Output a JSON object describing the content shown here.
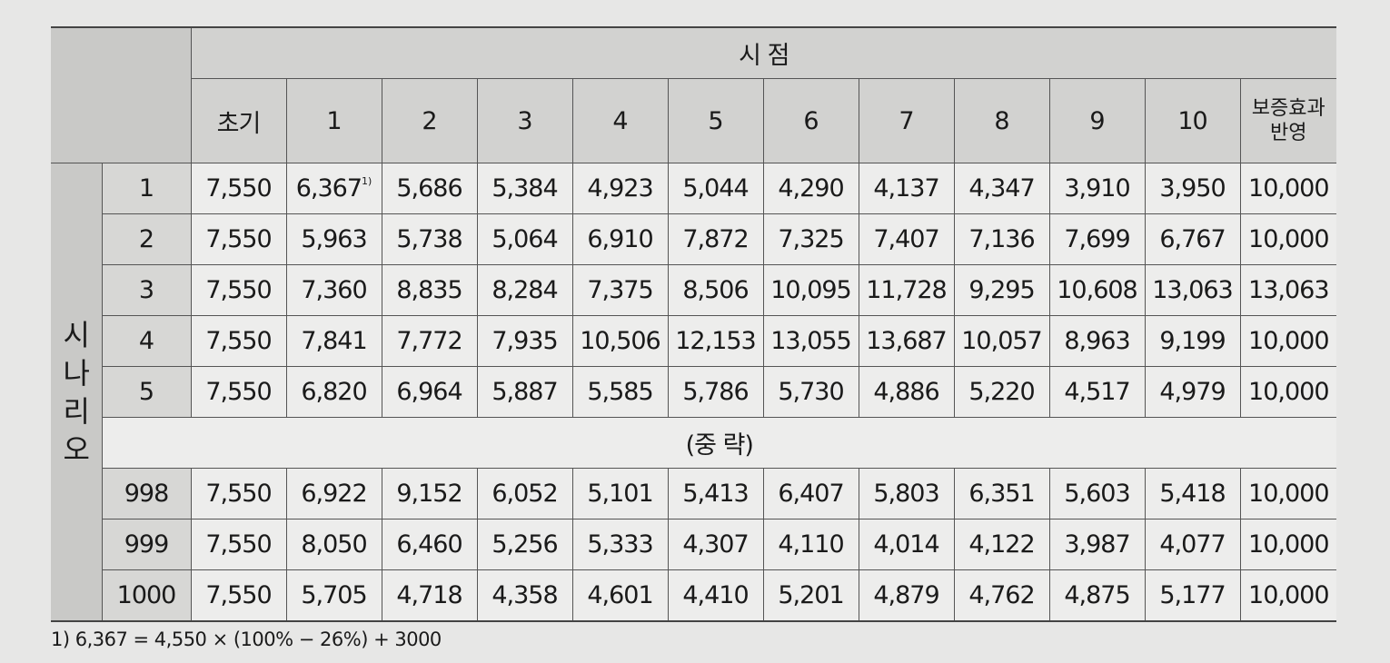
{
  "table": {
    "group_header": "시 점",
    "columns": [
      "초기",
      "1",
      "2",
      "3",
      "4",
      "5",
      "6",
      "7",
      "8",
      "9",
      "10",
      "보증효과 반영"
    ],
    "last_column": [
      "보증효과",
      "반영"
    ],
    "scenario_label": [
      "시",
      "나",
      "리",
      "오"
    ],
    "footnote_marker": "1)",
    "rows_top": [
      {
        "id": "1",
        "values": [
          "7,550",
          "6,367",
          "5,686",
          "5,384",
          "4,923",
          "5,044",
          "4,290",
          "4,137",
          "4,347",
          "3,910",
          "3,950",
          "10,000"
        ]
      },
      {
        "id": "2",
        "values": [
          "7,550",
          "5,963",
          "5,738",
          "5,064",
          "6,910",
          "7,872",
          "7,325",
          "7,407",
          "7,136",
          "7,699",
          "6,767",
          "10,000"
        ]
      },
      {
        "id": "3",
        "values": [
          "7,550",
          "7,360",
          "8,835",
          "8,284",
          "7,375",
          "8,506",
          "10,095",
          "11,728",
          "9,295",
          "10,608",
          "13,063",
          "13,063"
        ]
      },
      {
        "id": "4",
        "values": [
          "7,550",
          "7,841",
          "7,772",
          "7,935",
          "10,506",
          "12,153",
          "13,055",
          "13,687",
          "10,057",
          "8,963",
          "9,199",
          "10,000"
        ]
      },
      {
        "id": "5",
        "values": [
          "7,550",
          "6,820",
          "6,964",
          "5,887",
          "5,585",
          "5,786",
          "5,730",
          "4,886",
          "5,220",
          "4,517",
          "4,979",
          "10,000"
        ]
      }
    ],
    "omitted_label": "(중 략)",
    "rows_bottom": [
      {
        "id": "998",
        "values": [
          "7,550",
          "6,922",
          "9,152",
          "6,052",
          "5,101",
          "5,413",
          "6,407",
          "5,803",
          "6,351",
          "5,603",
          "5,418",
          "10,000"
        ]
      },
      {
        "id": "999",
        "values": [
          "7,550",
          "8,050",
          "6,460",
          "5,256",
          "5,333",
          "4,307",
          "4,110",
          "4,014",
          "4,122",
          "3,987",
          "4,077",
          "10,000"
        ]
      },
      {
        "id": "1000",
        "values": [
          "7,550",
          "5,705",
          "4,718",
          "4,358",
          "4,601",
          "4,410",
          "5,201",
          "4,879",
          "4,762",
          "4,875",
          "5,177",
          "10,000"
        ]
      }
    ]
  },
  "footnote": "1) 6,367 = 4,550 × (100% − 26%) + 3000"
}
